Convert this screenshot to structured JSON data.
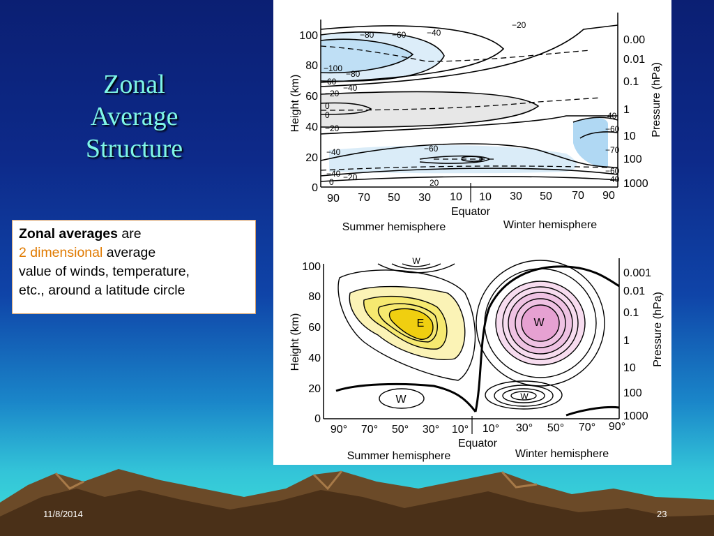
{
  "slide": {
    "title_lines": [
      "Zonal",
      "Average",
      "Structure"
    ],
    "callout": {
      "bold": "Zonal averages",
      "after_bold": " are",
      "highlight": "2 dimensional",
      "after_highlight": " average",
      "line3": "value of winds, temperature,",
      "line4": "etc., around a latitude circle"
    },
    "footer": {
      "date": "11/8/2014",
      "page": "23"
    }
  },
  "top_plot": {
    "y_axis_title": "Height (km)",
    "y_ticks": [
      "100",
      "80",
      "60",
      "40",
      "20",
      "0"
    ],
    "right_axis_title": "Pressure (hPa)",
    "right_ticks": [
      "0.00",
      "0.01",
      "0.1",
      "1",
      "10",
      "100",
      "1000"
    ],
    "x_ticks": [
      "90",
      "70",
      "50",
      "30",
      "10",
      "10",
      "30",
      "50",
      "70",
      "90"
    ],
    "x_center_label": "Equator",
    "left_hemisphere": "Summer hemisphere",
    "right_hemisphere": "Winter hemisphere",
    "contour_labels": [
      "−80",
      "−60",
      "−40",
      "−20",
      "−100",
      "−80",
      "−60",
      "−40",
      "−20",
      "0",
      "0",
      "−20",
      "−40",
      "−60",
      "−40",
      "−20",
      "0",
      "20",
      "−40",
      "−60",
      "−70",
      "−60",
      "−40"
    ]
  },
  "bottom_plot": {
    "y_axis_title": "Height (km)",
    "y_ticks": [
      "100",
      "80",
      "60",
      "40",
      "20",
      "0"
    ],
    "right_axis_title": "Pressure (hPa)",
    "right_ticks": [
      "0.001",
      "0.01",
      "0.1",
      "1",
      "10",
      "100",
      "1000"
    ],
    "x_ticks": [
      "90°",
      "70°",
      "50°",
      "30°",
      "10°",
      "10°",
      "30°",
      "50°",
      "70°",
      "90°"
    ],
    "x_center_label": "Equator",
    "left_hemisphere": "Summer hemisphere",
    "right_hemisphere": "Winter hemisphere",
    "region_labels": [
      "W",
      "E",
      "W",
      "W",
      "W"
    ]
  },
  "colors": {
    "title": "#7ff7e8",
    "highlight": "#e07a00",
    "cold_fill": "#8ec8ee",
    "easterly_fill": "#f3e23a",
    "westerly_fill": "#e8a6d6"
  }
}
